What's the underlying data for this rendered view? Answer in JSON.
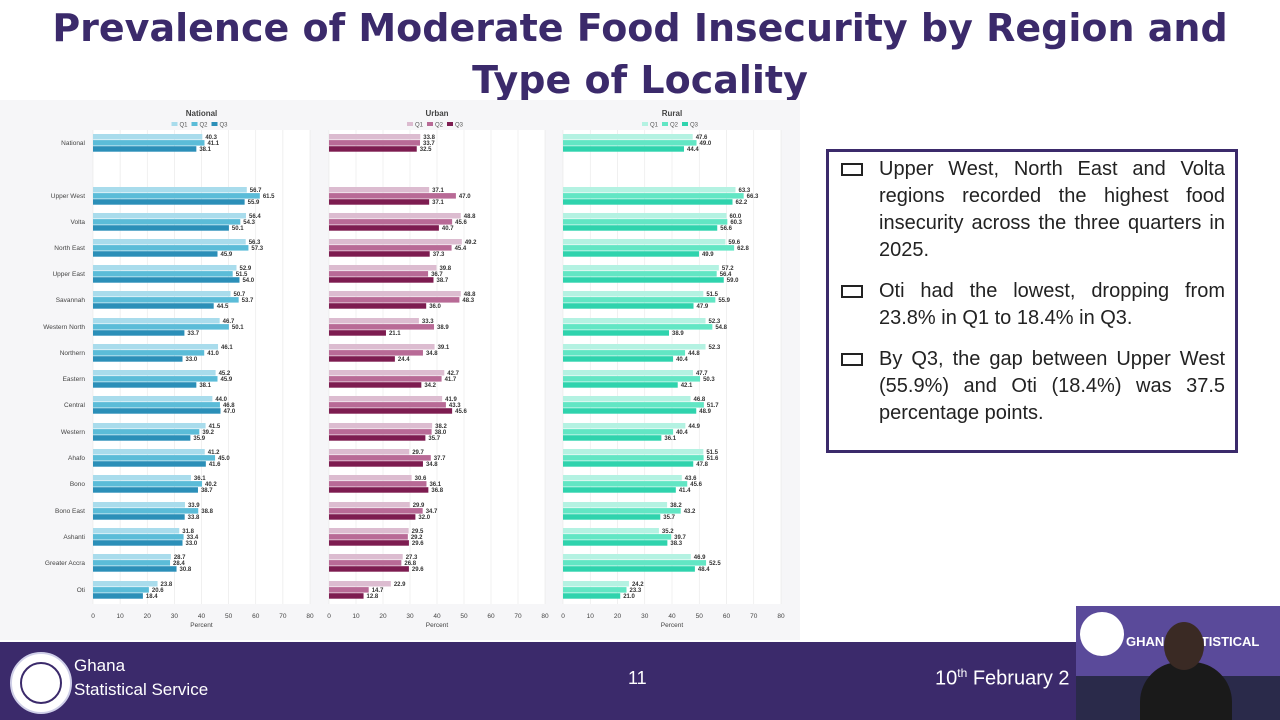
{
  "title": "Prevalence of Moderate Food Insecurity by Region and Type of Locality",
  "chart_data": [
    {
      "type": "bar",
      "title": "National",
      "xlabel": "Percent",
      "xlim": [
        0,
        80
      ],
      "xticks": [
        0,
        10,
        20,
        30,
        40,
        50,
        60,
        70,
        80
      ],
      "legend": "top-center",
      "categories": [
        "National",
        "Upper West",
        "Volta",
        "North East",
        "Upper East",
        "Savannah",
        "Western North",
        "Northern",
        "Eastern",
        "Central",
        "Western",
        "Ahafo",
        "Bono",
        "Bono East",
        "Ashanti",
        "Greater Accra",
        "Oti"
      ],
      "series": [
        {
          "name": "Q1",
          "color": "#a9dcec",
          "values": [
            40.3,
            56.7,
            56.4,
            56.3,
            52.9,
            50.7,
            46.7,
            46.1,
            45.2,
            44.0,
            41.5,
            41.2,
            36.1,
            33.9,
            31.8,
            28.7,
            23.8
          ]
        },
        {
          "name": "Q2",
          "color": "#5bbcd8",
          "values": [
            41.1,
            61.5,
            54.3,
            57.3,
            51.5,
            53.7,
            50.1,
            41.0,
            45.9,
            46.8,
            39.2,
            45.0,
            40.2,
            38.8,
            33.4,
            28.4,
            20.6
          ]
        },
        {
          "name": "Q3",
          "color": "#2b8fb8",
          "values": [
            38.1,
            55.9,
            50.1,
            45.9,
            54.0,
            44.5,
            33.7,
            33.0,
            38.1,
            47.0,
            35.9,
            41.6,
            38.7,
            33.8,
            33.0,
            30.8,
            18.4
          ]
        }
      ]
    },
    {
      "type": "bar",
      "title": "Urban",
      "xlabel": "Percent",
      "xlim": [
        0,
        80
      ],
      "xticks": [
        0,
        10,
        20,
        30,
        40,
        50,
        60,
        70,
        80
      ],
      "legend": "top-center",
      "categories": [
        "National",
        "Upper West",
        "Volta",
        "North East",
        "Upper East",
        "Savannah",
        "Western North",
        "Northern",
        "Eastern",
        "Central",
        "Western",
        "Ahafo",
        "Bono",
        "Bono East",
        "Ashanti",
        "Greater Accra",
        "Oti"
      ],
      "series": [
        {
          "name": "Q1",
          "color": "#dcbcd0",
          "values": [
            33.8,
            37.1,
            48.8,
            49.2,
            39.8,
            48.8,
            33.3,
            39.1,
            42.7,
            41.9,
            38.2,
            29.7,
            30.6,
            29.9,
            29.5,
            27.3,
            22.9
          ]
        },
        {
          "name": "Q2",
          "color": "#b86a96",
          "values": [
            33.7,
            47.0,
            45.6,
            45.4,
            36.7,
            48.3,
            38.9,
            34.8,
            41.7,
            43.3,
            38.0,
            37.7,
            36.1,
            34.7,
            29.2,
            26.8,
            14.7
          ]
        },
        {
          "name": "Q3",
          "color": "#7d1c50",
          "values": [
            32.5,
            37.1,
            40.7,
            37.3,
            38.7,
            36.0,
            21.1,
            24.4,
            34.2,
            45.6,
            35.7,
            34.8,
            36.8,
            32.0,
            29.6,
            29.6,
            12.8
          ]
        }
      ]
    },
    {
      "type": "bar",
      "title": "Rural",
      "xlabel": "Percent",
      "xlim": [
        0,
        80
      ],
      "xticks": [
        0,
        10,
        20,
        30,
        40,
        50,
        60,
        70,
        80
      ],
      "legend": "top-center",
      "categories": [
        "National",
        "Upper West",
        "Volta",
        "North East",
        "Upper East",
        "Savannah",
        "Western North",
        "Northern",
        "Eastern",
        "Central",
        "Western",
        "Ahafo",
        "Bono",
        "Bono East",
        "Ashanti",
        "Greater Accra",
        "Oti"
      ],
      "series": [
        {
          "name": "Q1",
          "color": "#b4f2e2",
          "values": [
            47.6,
            63.3,
            60.0,
            59.6,
            57.2,
            51.5,
            52.3,
            52.3,
            47.7,
            46.8,
            44.9,
            51.5,
            43.6,
            38.2,
            35.2,
            46.9,
            24.2
          ]
        },
        {
          "name": "Q2",
          "color": "#62e6c4",
          "values": [
            49.0,
            66.3,
            60.3,
            62.8,
            56.4,
            55.9,
            54.8,
            44.8,
            50.3,
            51.7,
            40.4,
            51.6,
            45.6,
            43.2,
            39.7,
            52.5,
            23.3
          ]
        },
        {
          "name": "Q3",
          "color": "#2fd3ad",
          "values": [
            44.4,
            62.2,
            56.6,
            49.9,
            59.0,
            47.9,
            38.9,
            40.4,
            42.1,
            48.9,
            36.1,
            47.8,
            41.4,
            35.7,
            38.3,
            48.4,
            21.0
          ]
        }
      ]
    }
  ],
  "bullets": [
    "Upper West, North East and Volta regions recorded the highest food insecurity across the three quarters in 2025.",
    "Oti had the lowest, dropping from 23.8% in Q1 to 18.4% in Q3.",
    "By Q3, the gap between Upper West (55.9%) and Oti (18.4%) was 37.5 percentage points."
  ],
  "footer": {
    "org_line1": "Ghana",
    "org_line2": "Statistical Service",
    "page_number": "11",
    "date_day": "10",
    "date_suffix": "th",
    "date_rest": " February 2"
  },
  "video": {
    "banner_text": "GHANA STATISTICAL"
  }
}
